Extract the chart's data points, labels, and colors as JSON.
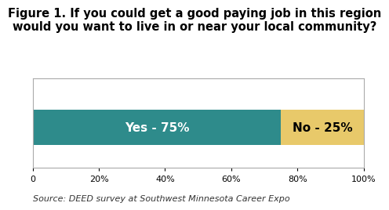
{
  "title_line1": "Figure 1. If you could get a good paying job in this region",
  "title_line2": "would you want to live in or near your local community?",
  "title_fontsize": 10.5,
  "title_fontweight": "bold",
  "bar_values": [
    75,
    25
  ],
  "bar_labels": [
    "Yes - 75%",
    "No - 25%"
  ],
  "bar_colors": [
    "#2e8b8b",
    "#e8c96a"
  ],
  "label_colors": [
    "white",
    "black"
  ],
  "xlim": [
    0,
    100
  ],
  "xtick_labels": [
    "0",
    "20%",
    "40%",
    "60%",
    "80%",
    "100%"
  ],
  "xtick_positions": [
    0,
    20,
    40,
    60,
    80,
    100
  ],
  "source_text": "Source: DEED survey at Southwest Minnesota Career Expo",
  "source_fontsize": 8,
  "bar_height": 0.6,
  "label_fontsize": 11,
  "label_fontweight": "bold",
  "background_color": "#ffffff",
  "spine_color": "#aaaaaa"
}
